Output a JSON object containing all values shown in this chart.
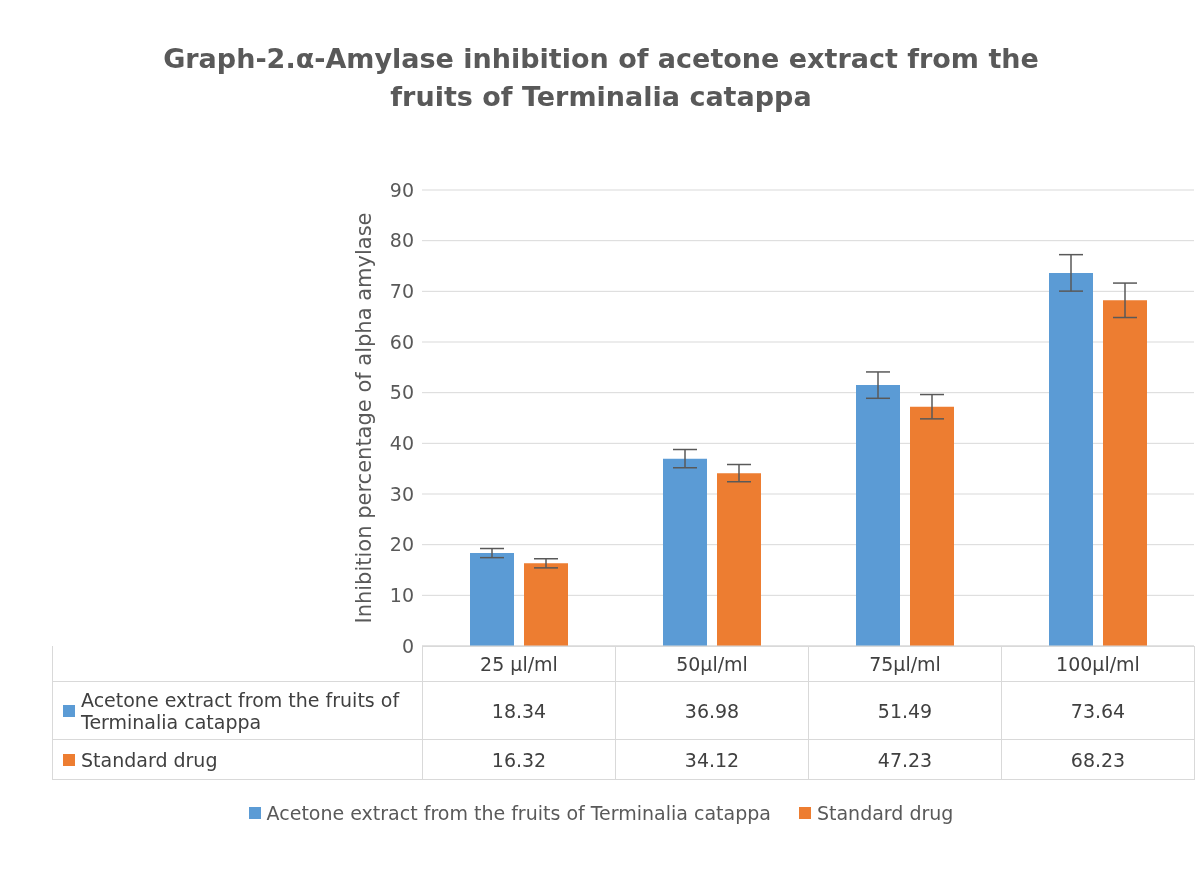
{
  "chart_data": {
    "type": "bar",
    "title": "Graph-2.α-Amylase inhibition of acetone extract from the fruits of Terminalia catappa",
    "ylabel": "Inhibition percentage of alpha amylase",
    "categories": [
      "25 µl/ml",
      "50µl/ml",
      "75µl/ml",
      "100µl/ml"
    ],
    "series": [
      {
        "name": "Acetone extract from the fruits of Terminalia catappa",
        "color": "#5b9bd5",
        "values": [
          18.34,
          36.98,
          51.49,
          73.64
        ],
        "errors": [
          0.9,
          1.8,
          2.6,
          3.6
        ]
      },
      {
        "name": "Standard drug",
        "color": "#ed7d31",
        "values": [
          16.32,
          34.12,
          47.23,
          68.23
        ],
        "errors": [
          0.9,
          1.7,
          2.4,
          3.4
        ]
      }
    ],
    "ylim": [
      0,
      90
    ],
    "yticks": [
      0,
      10,
      20,
      30,
      40,
      50,
      60,
      70,
      80,
      90
    ],
    "grid": "y",
    "legend": "bottom",
    "data_labels": true
  }
}
